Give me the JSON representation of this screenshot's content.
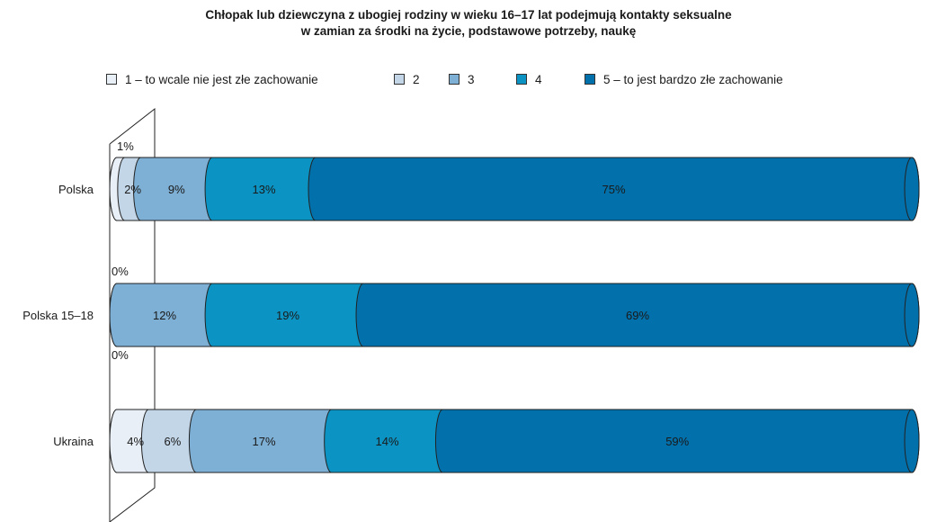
{
  "chart_data": {
    "type": "bar",
    "orientation": "horizontal",
    "stacked": true,
    "percent_stacked": true,
    "title_lines": [
      "Chłopak lub dziewczyna z ubogiej rodziny w wieku 16–17 lat podejmują kontakty seksualne",
      "w zamian za środki na życie, podstawowe potrzeby, naukę"
    ],
    "categories": [
      "Polska",
      "Polska 15–18",
      "Ukraina"
    ],
    "series": [
      {
        "name": "1 – to wcale nie jest złe zachowanie",
        "color": "#e8eff7",
        "values": [
          1,
          0,
          4
        ],
        "labels": [
          "1%",
          "0%",
          "4%"
        ]
      },
      {
        "name": "2",
        "color": "#c2d6e8",
        "values": [
          2,
          0,
          6
        ],
        "labels": [
          "2%",
          "0%",
          "6%"
        ]
      },
      {
        "name": "3",
        "color": "#7eafd4",
        "values": [
          9,
          12,
          17
        ],
        "labels": [
          "9%",
          "12%",
          "17%"
        ]
      },
      {
        "name": "4",
        "color": "#0b94c3",
        "values": [
          13,
          19,
          14
        ],
        "labels": [
          "13%",
          "19%",
          "14%"
        ]
      },
      {
        "name": "5 – to jest bardzo złe zachowanie",
        "color": "#0270ab",
        "values": [
          75,
          69,
          59
        ],
        "labels": [
          "75%",
          "69%",
          "59%"
        ]
      }
    ],
    "legend_position": "top",
    "grid": false
  }
}
